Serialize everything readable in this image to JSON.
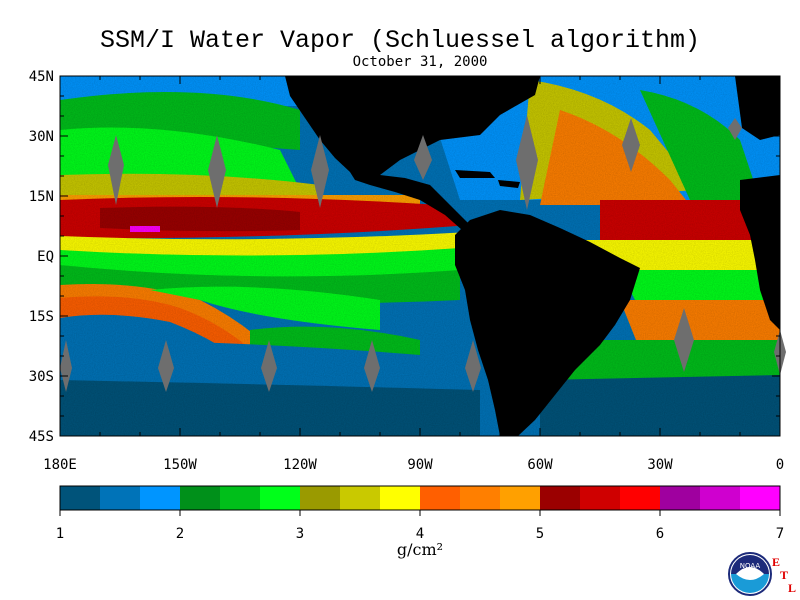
{
  "title": "SSM/I Water Vapor (Schluessel algorithm)",
  "subtitle": "October 31, 2000",
  "units": "g/cm²",
  "map": {
    "lat_labels": [
      "45N",
      "30N",
      "15N",
      "EQ",
      "15S",
      "30S",
      "45S"
    ],
    "lat_values": [
      45,
      30,
      15,
      0,
      -15,
      -30,
      -45
    ],
    "lon_labels": [
      "180E",
      "150W",
      "120W",
      "90W",
      "60W",
      "30W",
      "0"
    ],
    "lon_values": [
      -180,
      -150,
      -120,
      -90,
      -60,
      -30,
      0
    ],
    "lon_range": [
      -180,
      0
    ],
    "lat_range": [
      -45,
      45
    ],
    "land_color": "#000000",
    "swath_gap_color": "#6e6e6e"
  },
  "colorbar": {
    "tick_labels": [
      "1",
      "2",
      "3",
      "4",
      "5",
      "6",
      "7"
    ],
    "range": [
      1,
      7
    ],
    "colors": [
      "#00537a",
      "#0073b8",
      "#0095ff",
      "#00901a",
      "#00bf1a",
      "#00ff1a",
      "#9a9a00",
      "#c9c900",
      "#ffff00",
      "#ff5f00",
      "#ff7f00",
      "#ffa000",
      "#9b0000",
      "#cf0000",
      "#ff0000",
      "#9f009f",
      "#cf00cf",
      "#ff00ff"
    ]
  },
  "logo": {
    "text": "NOAA",
    "etl_letters": [
      "E",
      "T",
      "L"
    ]
  }
}
